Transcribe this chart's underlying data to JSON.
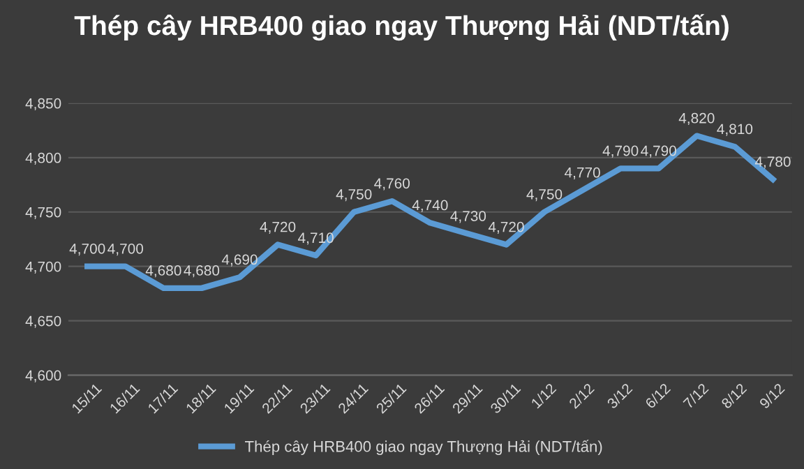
{
  "chart_data": {
    "type": "line",
    "title": "Thép cây HRB400 giao ngay Thượng Hải (NDT/tấn)",
    "categories": [
      "15/11",
      "16/11",
      "17/11",
      "18/11",
      "19/11",
      "22/11",
      "23/11",
      "24/11",
      "25/11",
      "26/11",
      "29/11",
      "30/11",
      "1/12",
      "2/12",
      "3/12",
      "6/12",
      "7/12",
      "8/12",
      "9/12"
    ],
    "series": [
      {
        "name": "Thép cây HRB400 giao ngay Thượng Hải (NDT/tấn)",
        "color": "#5b9bd5",
        "values": [
          4700,
          4700,
          4680,
          4680,
          4690,
          4720,
          4710,
          4750,
          4760,
          4740,
          4730,
          4720,
          4750,
          4770,
          4790,
          4790,
          4820,
          4810,
          4780
        ],
        "value_labels": [
          "4,700",
          "4,700",
          "4,680",
          "4,680",
          "4,690",
          "4,720",
          "4,710",
          "4,750",
          "4,760",
          "4,740",
          "4,730",
          "4,720",
          "4,750",
          "4,770",
          "4,790",
          "4,790",
          "4,820",
          "4,810",
          "4,780"
        ]
      }
    ],
    "ylim": [
      4600,
      4850
    ],
    "yticks": [
      {
        "value": 4600,
        "label": "4,600"
      },
      {
        "value": 4650,
        "label": "4,650"
      },
      {
        "value": 4700,
        "label": "4,700"
      },
      {
        "value": 4750,
        "label": "4,750"
      },
      {
        "value": 4800,
        "label": "4,800"
      },
      {
        "value": 4850,
        "label": "4,850"
      }
    ],
    "grid": "y",
    "legend": "bottom",
    "marker": "none",
    "line_style": "solid"
  }
}
